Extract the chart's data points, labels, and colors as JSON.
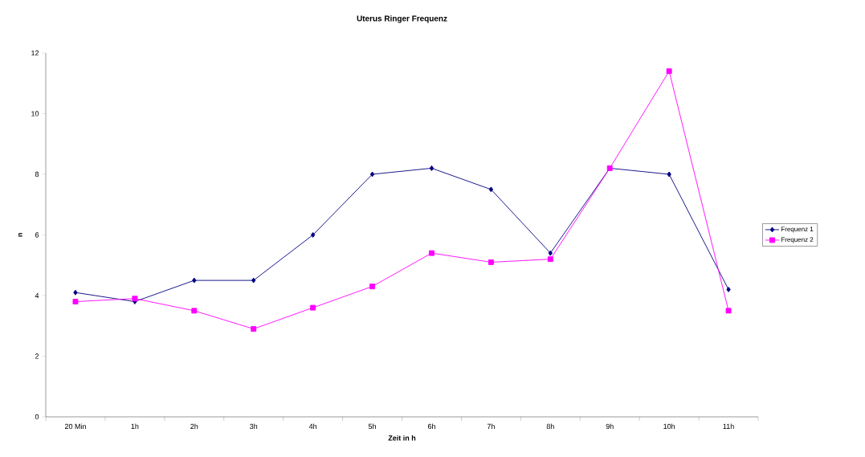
{
  "chart_data": {
    "type": "line",
    "title": "Uterus Ringer Frequenz",
    "xlabel": "Zeit in h",
    "ylabel": "n",
    "categories": [
      "20 Min",
      "1h",
      "2h",
      "3h",
      "4h",
      "5h",
      "6h",
      "7h",
      "8h",
      "9h",
      "10h",
      "11h"
    ],
    "series": [
      {
        "name": "Frequenz 1",
        "color": "#000080",
        "marker": "diamond",
        "values": [
          4.1,
          3.8,
          4.5,
          4.5,
          6.0,
          8.0,
          8.2,
          7.5,
          5.4,
          8.2,
          8.0,
          4.2
        ]
      },
      {
        "name": "Frequenz 2",
        "color": "#ff00ff",
        "marker": "square",
        "values": [
          3.8,
          3.9,
          3.5,
          2.9,
          3.6,
          4.3,
          5.4,
          5.1,
          5.2,
          8.2,
          11.4,
          3.5
        ]
      }
    ],
    "ylim": [
      0,
      12
    ],
    "yticks": [
      0,
      2,
      4,
      6,
      8,
      10,
      12
    ],
    "grid": false,
    "legend": "right",
    "line_style": "solid"
  }
}
